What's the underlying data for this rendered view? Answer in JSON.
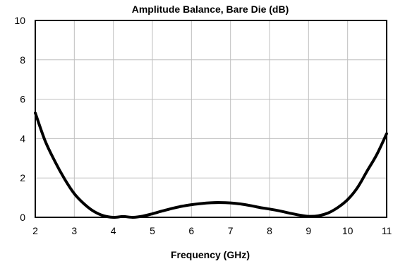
{
  "chart_data": {
    "type": "line",
    "title": "Amplitude Balance, Bare Die (dB)",
    "xlabel": "Frequency (GHz)",
    "ylabel": "",
    "xlim": [
      2,
      11
    ],
    "ylim": [
      0,
      10
    ],
    "xticks": [
      2,
      3,
      4,
      5,
      6,
      7,
      8,
      9,
      10,
      11
    ],
    "yticks": [
      0,
      2,
      4,
      6,
      8,
      10
    ],
    "xtick_labels": [
      "2",
      "3",
      "4",
      "5",
      "6",
      "7",
      "8",
      "9",
      "10",
      "11"
    ],
    "ytick_labels": [
      "0",
      "2",
      "4",
      "6",
      "8",
      "10"
    ],
    "grid": true,
    "legend": "none",
    "line_color": "#000000",
    "series": [
      {
        "x": [
          2.0,
          2.25,
          2.5,
          2.75,
          3.0,
          3.25,
          3.5,
          3.75,
          4.0,
          4.25,
          4.5,
          4.75,
          5.0,
          5.25,
          5.5,
          5.75,
          6.0,
          6.25,
          6.5,
          6.75,
          7.0,
          7.25,
          7.5,
          7.75,
          8.0,
          8.25,
          8.5,
          8.75,
          9.0,
          9.25,
          9.5,
          9.75,
          10.0,
          10.25,
          10.5,
          10.75,
          11.0
        ],
        "y": [
          5.3,
          3.9,
          2.85,
          1.95,
          1.2,
          0.68,
          0.3,
          0.08,
          0.0,
          0.04,
          0.0,
          0.06,
          0.18,
          0.32,
          0.45,
          0.56,
          0.64,
          0.7,
          0.74,
          0.75,
          0.73,
          0.68,
          0.6,
          0.5,
          0.42,
          0.33,
          0.22,
          0.12,
          0.05,
          0.08,
          0.22,
          0.5,
          0.9,
          1.5,
          2.35,
          3.2,
          4.25
        ]
      }
    ]
  }
}
